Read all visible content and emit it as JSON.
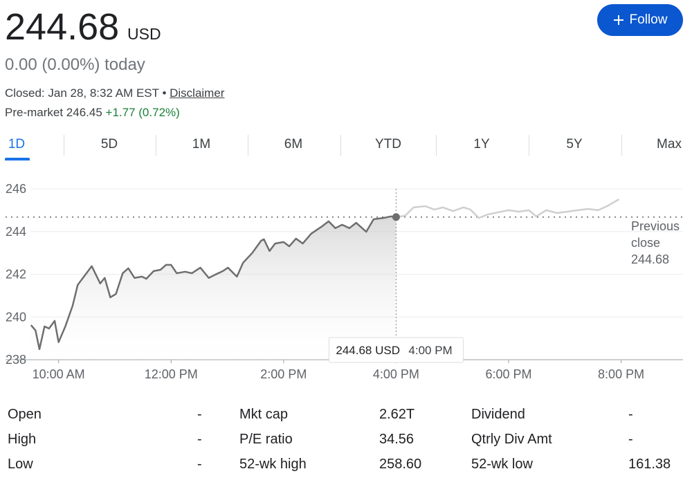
{
  "header": {
    "price": "244.68",
    "currency": "USD",
    "change": "0.00 (0.00%) today",
    "closed": "Closed: Jan 28, 8:32 AM EST",
    "separator": "•",
    "disclaimer": "Disclaimer",
    "premarket": "Pre-market 246.45",
    "premarket_change": "+1.77 (0.72%)",
    "follow": "Follow"
  },
  "tabs": [
    "1D",
    "5D",
    "1M",
    "6M",
    "YTD",
    "1Y",
    "5Y",
    "Max"
  ],
  "chart_data": {
    "type": "line",
    "series": [
      {
        "color": "#6e6e6e",
        "x": [
          9.51,
          9.59,
          9.66,
          9.75,
          9.83,
          9.93,
          10.0,
          10.12,
          10.25,
          10.34,
          10.45,
          10.59,
          10.74,
          10.82,
          10.92,
          11.02,
          11.14,
          11.24,
          11.35,
          11.48,
          11.56,
          11.69,
          11.81,
          11.91,
          12.0,
          12.1,
          12.25,
          12.37,
          12.52,
          12.67,
          12.79,
          12.92,
          13.01,
          13.17,
          13.28,
          13.44,
          13.6,
          13.65,
          13.75,
          13.85,
          14.0,
          14.1,
          14.22,
          14.34,
          14.49,
          14.67,
          14.8,
          14.92,
          15.04,
          15.17,
          15.29,
          15.47,
          15.6,
          15.78,
          15.91,
          16.0
        ],
        "values": [
          239.62,
          239.37,
          238.49,
          239.56,
          239.46,
          239.82,
          238.82,
          239.56,
          240.53,
          241.5,
          241.89,
          242.38,
          241.57,
          241.83,
          240.92,
          241.08,
          242.05,
          242.28,
          241.83,
          241.89,
          241.79,
          242.15,
          242.21,
          242.44,
          242.44,
          242.05,
          242.12,
          242.05,
          242.31,
          241.83,
          241.99,
          242.15,
          242.31,
          241.89,
          242.54,
          242.99,
          243.57,
          243.64,
          243.09,
          243.44,
          243.51,
          243.31,
          243.67,
          243.44,
          243.9,
          244.22,
          244.48,
          244.16,
          244.32,
          244.16,
          244.41,
          243.99,
          244.58,
          244.64,
          244.71,
          244.68
        ]
      },
      {
        "color": "#cfcfcf",
        "x": [
          16.0,
          16.16,
          16.31,
          16.52,
          16.68,
          16.83,
          17.01,
          17.2,
          17.32,
          17.47,
          17.63,
          17.81,
          18.0,
          18.18,
          18.36,
          18.49,
          18.67,
          18.86,
          19.04,
          19.23,
          19.41,
          19.59,
          19.75,
          19.96
        ],
        "values": [
          244.68,
          244.74,
          245.13,
          245.19,
          245.03,
          245.13,
          244.96,
          245.13,
          245.03,
          244.64,
          244.8,
          244.9,
          245.0,
          244.93,
          245.0,
          244.71,
          245.0,
          244.87,
          244.93,
          245.0,
          245.06,
          245.0,
          245.19,
          245.51
        ]
      }
    ],
    "xlim": [
      9.5,
      21.1
    ],
    "xticks": [
      {
        "value": 10,
        "label": "10:00 AM"
      },
      {
        "value": 12,
        "label": "12:00 PM"
      },
      {
        "value": 14,
        "label": "2:00 PM"
      },
      {
        "value": 16,
        "label": "4:00 PM"
      },
      {
        "value": 18,
        "label": "6:00 PM"
      },
      {
        "value": 20,
        "label": "8:00 PM"
      }
    ],
    "ylim": [
      238,
      246
    ],
    "yticks": [
      238,
      240,
      242,
      244,
      246
    ],
    "grid": true,
    "previous_close": {
      "label": "Previous close",
      "value": 244.68
    },
    "tooltip": {
      "price": "244.68 USD",
      "time": "4:00 PM"
    }
  },
  "stats": [
    [
      {
        "label": "Open",
        "value": "-"
      },
      {
        "label": "Mkt cap",
        "value": "2.62T"
      },
      {
        "label": "Dividend",
        "value": "-"
      }
    ],
    [
      {
        "label": "High",
        "value": "-"
      },
      {
        "label": "P/E ratio",
        "value": "34.56"
      },
      {
        "label": "Qtrly Div Amt",
        "value": "-"
      }
    ],
    [
      {
        "label": "Low",
        "value": "-"
      },
      {
        "label": "52-wk high",
        "value": "258.60"
      },
      {
        "label": "52-wk low",
        "value": "161.38"
      }
    ]
  ]
}
